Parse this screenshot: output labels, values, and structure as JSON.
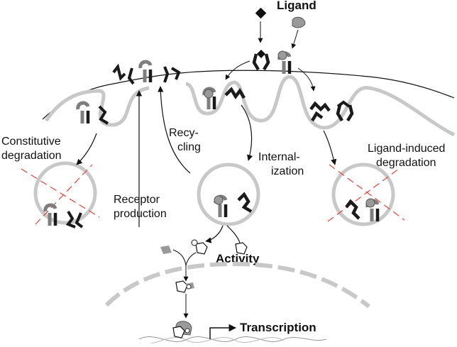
{
  "labels": {
    "ligand": "Ligand",
    "constitutive_line1": "Constitutive",
    "constitutive_line2": "degradation",
    "recycling_line1": "Recy-",
    "recycling_line2": "cling",
    "internalization_line1": "Internal-",
    "internalization_line2": "ization",
    "ligand_induced_line1": "Ligand-induced",
    "ligand_induced_line2": "degradation",
    "receptor_line1": "Receptor",
    "receptor_line2": "production",
    "activity": "Activity",
    "transcription": "Transcription",
    "phospho_mark": "P"
  },
  "colors": {
    "membrane": "#c8c8c8",
    "dark_receptor": "#1a1a1a",
    "grey_receptor": "#8a8a8a",
    "ligand_grey": "#9a9a9a",
    "degradation_cross": "#e0433a",
    "arrow": "#111111"
  }
}
